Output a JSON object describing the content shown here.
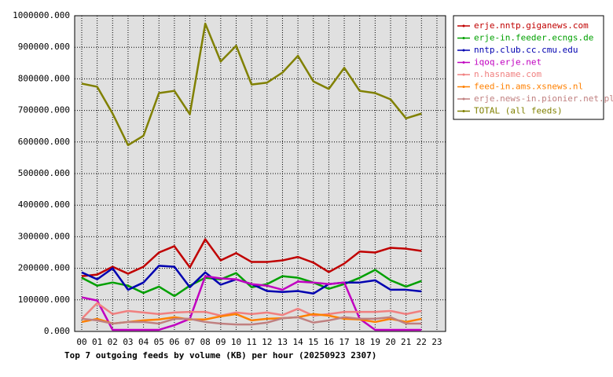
{
  "chart_data": {
    "type": "line",
    "title": "Top 7 outgoing feeds by volume (KB) per hour (20250923 2307)",
    "categories": [
      "00",
      "01",
      "02",
      "03",
      "04",
      "05",
      "06",
      "07",
      "08",
      "09",
      "10",
      "11",
      "12",
      "13",
      "14",
      "15",
      "16",
      "17",
      "18",
      "19",
      "20",
      "21",
      "22",
      "23"
    ],
    "ylim": [
      0,
      1000000
    ],
    "yticks": [
      {
        "value": 0,
        "label": "0.000"
      },
      {
        "value": 100000,
        "label": "100000.000"
      },
      {
        "value": 200000,
        "label": "200000.000"
      },
      {
        "value": 300000,
        "label": "300000.000"
      },
      {
        "value": 400000,
        "label": "400000.000"
      },
      {
        "value": 500000,
        "label": "500000.000"
      },
      {
        "value": 600000,
        "label": "600000.000"
      },
      {
        "value": 700000,
        "label": "700000.000"
      },
      {
        "value": 800000,
        "label": "800000.000"
      },
      {
        "value": 900000,
        "label": "900000.000"
      },
      {
        "value": 1000000,
        "label": "1000000.000"
      }
    ],
    "grid": true,
    "legend": "right",
    "series": [
      {
        "name": "erje.nntp.giganews.com",
        "color": "#c00000",
        "values": [
          175000,
          180000,
          205000,
          183000,
          205000,
          250000,
          270000,
          203000,
          292000,
          225000,
          248000,
          220000,
          220000,
          225000,
          236000,
          218000,
          188000,
          215000,
          253000,
          250000,
          265000,
          262000,
          255000,
          null
        ]
      },
      {
        "name": "erje-in.feeder.ecngs.de",
        "color": "#00a000",
        "values": [
          170000,
          145000,
          155000,
          145000,
          122000,
          142000,
          112000,
          145000,
          170000,
          165000,
          185000,
          140000,
          150000,
          175000,
          170000,
          155000,
          135000,
          150000,
          170000,
          195000,
          162000,
          142000,
          160000,
          null
        ]
      },
      {
        "name": "nntp.club.cc.cmu.edu",
        "color": "#0000b0",
        "values": [
          187000,
          165000,
          200000,
          132000,
          155000,
          208000,
          205000,
          140000,
          187000,
          148000,
          165000,
          150000,
          128000,
          125000,
          128000,
          120000,
          150000,
          155000,
          155000,
          162000,
          132000,
          132000,
          127000,
          null
        ]
      },
      {
        "name": "iqoq.erje.net",
        "color": "#c000c0",
        "values": [
          108000,
          98000,
          5000,
          5000,
          5000,
          5000,
          20000,
          40000,
          175000,
          168000,
          165000,
          150000,
          145000,
          132000,
          158000,
          155000,
          150000,
          155000,
          40000,
          5000,
          5000,
          5000,
          5000,
          null
        ]
      },
      {
        "name": "n.hasname.com",
        "color": "#f08080",
        "values": [
          40000,
          90000,
          55000,
          65000,
          60000,
          55000,
          60000,
          62000,
          62000,
          50000,
          60000,
          55000,
          60000,
          52000,
          72000,
          50000,
          55000,
          62000,
          62000,
          62000,
          65000,
          55000,
          65000,
          null
        ]
      },
      {
        "name": "feed-in.ams.xsnews.nl",
        "color": "#ff8000",
        "values": [
          30000,
          40000,
          25000,
          30000,
          35000,
          38000,
          45000,
          38000,
          38000,
          48000,
          55000,
          35000,
          40000,
          42000,
          45000,
          55000,
          50000,
          40000,
          38000,
          30000,
          40000,
          30000,
          40000,
          null
        ]
      },
      {
        "name": "erje.news-in.pionier.net.pl",
        "color": "#c08080",
        "values": [
          40000,
          35000,
          25000,
          30000,
          30000,
          25000,
          40000,
          40000,
          30000,
          25000,
          22000,
          22000,
          28000,
          42000,
          45000,
          28000,
          35000,
          45000,
          40000,
          40000,
          45000,
          25000,
          25000,
          null
        ]
      },
      {
        "name": "TOTAL (all feeds)",
        "color": "#808000",
        "values": [
          785000,
          775000,
          690000,
          590000,
          620000,
          755000,
          762000,
          688000,
          975000,
          855000,
          905000,
          782000,
          788000,
          820000,
          873000,
          792000,
          768000,
          835000,
          762000,
          755000,
          735000,
          675000,
          690000,
          null
        ]
      }
    ]
  }
}
